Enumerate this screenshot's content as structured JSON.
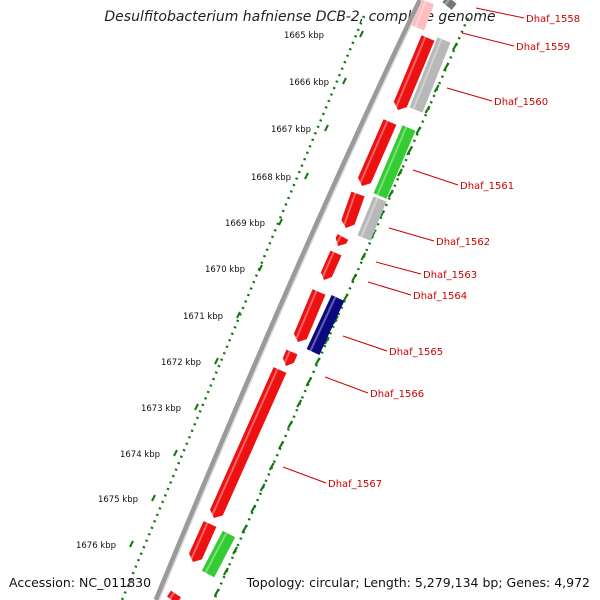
{
  "title": "Desulfitobacterium hafniense DCB-2, complete genome",
  "footer": {
    "accession": "Accession: NC_011830",
    "summary": "Topology: circular; Length: 5,279,134 bp; Genes: 4,972"
  },
  "colors": {
    "red": "#ee1111",
    "gray": "#b8b8b8",
    "green": "#33cc33",
    "blue": "#0a0a80",
    "label": "#cc0000",
    "tick": "#117711"
  },
  "scale_ticks": [
    "1665 kbp",
    "1666 kbp",
    "1667 kbp",
    "1668 kbp",
    "1669 kbp",
    "1670 kbp",
    "1671 kbp",
    "1672 kbp",
    "1673 kbp",
    "1674 kbp",
    "1675 kbp",
    "1676 kbp"
  ],
  "gene_labels": [
    "Dhaf_1558",
    "Dhaf_1559",
    "Dhaf_1560",
    "Dhaf_1561",
    "Dhaf_1562",
    "Dhaf_1563",
    "Dhaf_1564",
    "Dhaf_1565",
    "Dhaf_1566",
    "Dhaf_1567"
  ]
}
